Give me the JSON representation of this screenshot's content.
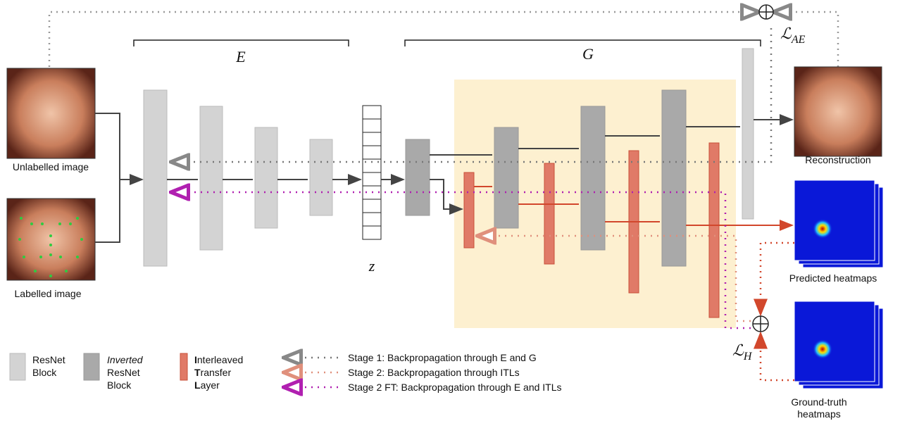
{
  "encoder_label": "E",
  "generator_label": "G",
  "latent_label": "z",
  "inputs": {
    "unlabelled": "Unlabelled image",
    "labelled": "Labelled image"
  },
  "outputs": {
    "reconstruction": "Reconstruction",
    "predicted": "Predicted heatmaps",
    "ground_truth": [
      "Ground-truth",
      "heatmaps"
    ]
  },
  "losses": {
    "ae": {
      "symbol": "ℒ",
      "sub": "AE"
    },
    "h": {
      "symbol": "ℒ",
      "sub": "H"
    }
  },
  "legend": {
    "resnet": [
      "ResNet",
      "Block"
    ],
    "inverted": [
      "Inverted",
      "ResNet",
      "Block"
    ],
    "itl": [
      {
        "bold": "I",
        "rest": "nterleaved"
      },
      {
        "bold": "T",
        "rest": "ransfer"
      },
      {
        "bold": "L",
        "rest": "ayer"
      }
    ],
    "stages": [
      "Stage 1: Backpropagation through E and G",
      "Stage 2: Backpropagation through ITLs",
      "Stage 2 FT: Backpropagation through E and ITLs"
    ]
  }
}
